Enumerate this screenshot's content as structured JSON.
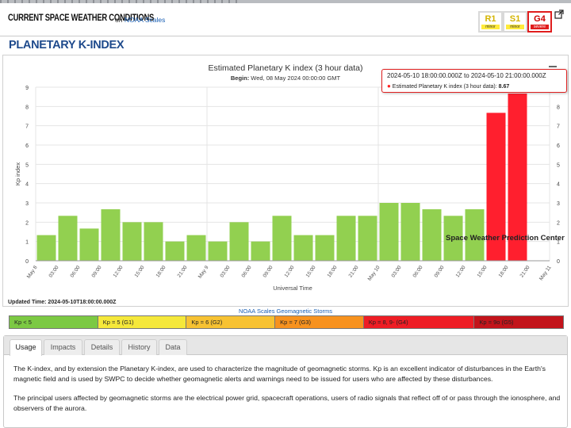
{
  "conditions": {
    "title": "CURRENT SPACE WEATHER CONDITIONS",
    "on_text": "on",
    "link": "NOAA Scales",
    "scales": [
      {
        "level": "R1",
        "word": "minor"
      },
      {
        "level": "S1",
        "word": "minor"
      },
      {
        "level": "G4",
        "word": "severe"
      }
    ]
  },
  "page_title": "PLANETARY K-INDEX",
  "chart": {
    "title": "Estimated Planetary K index (3 hour data)",
    "begin_label": "Begin:",
    "begin_value": "Wed, 08 May 2024 00:00:00 GMT",
    "tooltip": {
      "header": "2024-05-10 18:00:00.000Z to 2024-05-10 21:00:00.000Z",
      "series": "Estimated Planetary K index (3 hour data):",
      "value": "8.67"
    },
    "credit": "Space Weather Prediction Center"
  },
  "chart_data": {
    "type": "bar",
    "title": "Estimated Planetary K index (3 hour data)",
    "xlabel": "Universal Time",
    "ylabel": "Kp index",
    "ylim": [
      0,
      9
    ],
    "yticks": [
      "0",
      "1",
      "2",
      "3",
      "4",
      "5",
      "6",
      "7",
      "8",
      "9"
    ],
    "xticks": [
      "May 8",
      "03:00",
      "06:00",
      "09:00",
      "12:00",
      "15:00",
      "18:00",
      "21:00",
      "May 9",
      "03:00",
      "06:00",
      "09:00",
      "12:00",
      "15:00",
      "18:00",
      "21:00",
      "May 10",
      "03:00",
      "06:00",
      "09:00",
      "12:00",
      "15:00",
      "18:00",
      "21:00",
      "May 11"
    ],
    "values": [
      1.33,
      2.33,
      1.67,
      2.67,
      2.0,
      2.0,
      1.0,
      1.33,
      1.0,
      2.0,
      1.0,
      2.33,
      1.33,
      1.33,
      2.33,
      2.33,
      3.0,
      3.0,
      2.67,
      2.33,
      2.67,
      7.67,
      8.67
    ],
    "colors": {
      "green": "#92d050",
      "red": "#ff1f2e",
      "grid": "#e4e4e4"
    }
  },
  "updated": "Updated Time: 2024-05-10T18:00:00.000Z",
  "scales_link": "NOAA Scales Geomagnetic Storms",
  "legend": [
    {
      "label": "Kp < 5",
      "color": "#7cc943"
    },
    {
      "label": "Kp = 5 (G1)",
      "color": "#f5e83a"
    },
    {
      "label": "Kp = 6 (G2)",
      "color": "#f7c232"
    },
    {
      "label": "Kp = 7 (G3)",
      "color": "#f7921e"
    },
    {
      "label": "Kp = 8, 9- (G4)",
      "color": "#ee1d25"
    },
    {
      "label": "Kp = 9o (G5)",
      "color": "#c3141b"
    }
  ],
  "tabs": [
    "Usage",
    "Impacts",
    "Details",
    "History",
    "Data"
  ],
  "active_tab": "Usage",
  "usage": {
    "p1": "The K-index, and by extension the Planetary K-index, are used to characterize the magnitude of geomagnetic storms. Kp is an excellent indicator of disturbances in the Earth's magnetic field and is used by SWPC to decide whether geomagnetic alerts and warnings need to be issued for users who are affected by these disturbances.",
    "p2": "The principal users affected by geomagnetic storms are the electrical power grid, spacecraft operations, users of radio signals that reflect off of or pass through the ionosphere, and observers of the aurora."
  }
}
